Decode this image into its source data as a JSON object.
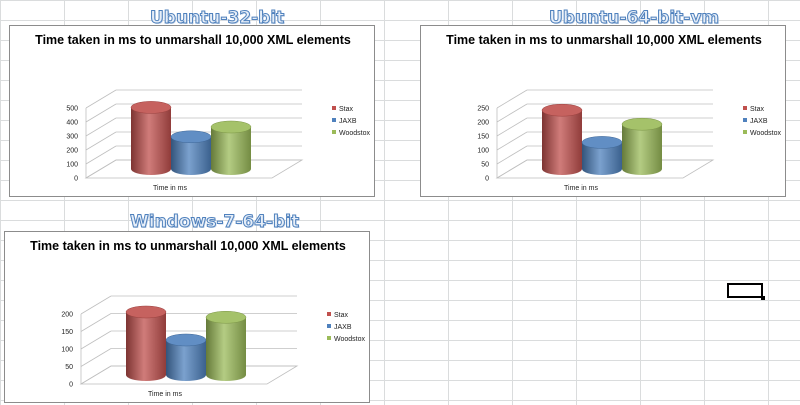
{
  "headings": [
    "Ubuntu-32-bit",
    "Ubuntu-64-bit-vm",
    "Windows-7-64-bit"
  ],
  "colors": {
    "stax": "#c0504d",
    "jaxb": "#4f81bd",
    "woodstox": "#9bbb59",
    "heading": "#4f81bd"
  },
  "chart_data": [
    {
      "type": "bar",
      "title": "Time taken in ms to unmarshall 10,000 XML elements",
      "xlabel": "Time in ms",
      "ylabel": "",
      "categories": [
        "Time in ms"
      ],
      "series": [
        {
          "name": "Stax",
          "values": [
            440
          ]
        },
        {
          "name": "JAXB",
          "values": [
            230
          ]
        },
        {
          "name": "Woodstox",
          "values": [
            300
          ]
        }
      ],
      "yticks": [
        "0",
        "100",
        "200",
        "300",
        "400",
        "500"
      ],
      "ylim": [
        0,
        500
      ],
      "legend": "right",
      "grid": true
    },
    {
      "type": "bar",
      "title": "Time taken in ms to unmarshall 10,000 XML elements",
      "xlabel": "Time in ms",
      "ylabel": "",
      "categories": [
        "Time in ms"
      ],
      "series": [
        {
          "name": "Stax",
          "values": [
            210
          ]
        },
        {
          "name": "JAXB",
          "values": [
            95
          ]
        },
        {
          "name": "Woodstox",
          "values": [
            160
          ]
        }
      ],
      "yticks": [
        "0",
        "50",
        "100",
        "150",
        "200",
        "250"
      ],
      "ylim": [
        0,
        250
      ],
      "legend": "right",
      "grid": true
    },
    {
      "type": "bar",
      "title": "Time taken in ms to unmarshall 10,000 XML elements",
      "xlabel": "Time in ms",
      "ylabel": "",
      "categories": [
        "Time in ms"
      ],
      "series": [
        {
          "name": "Stax",
          "values": [
            180
          ]
        },
        {
          "name": "JAXB",
          "values": [
            100
          ]
        },
        {
          "name": "Woodstox",
          "values": [
            165
          ]
        }
      ],
      "yticks": [
        "0",
        "50",
        "100",
        "150",
        "200"
      ],
      "ylim": [
        0,
        200
      ],
      "legend": "right",
      "grid": true
    }
  ]
}
